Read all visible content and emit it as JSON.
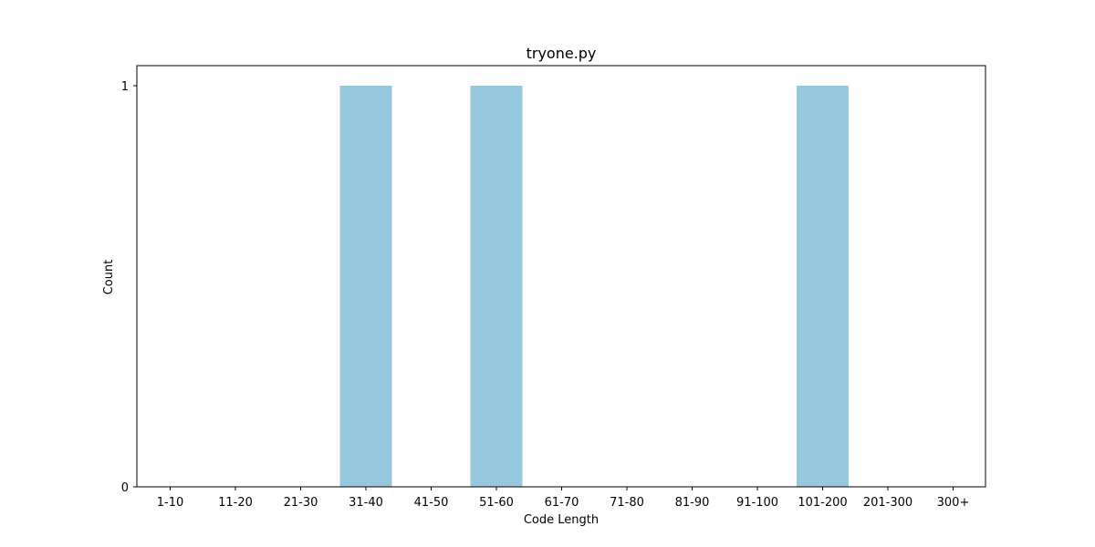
{
  "chart_data": {
    "type": "bar",
    "title": "tryone.py",
    "xlabel": "Code Length",
    "ylabel": "Count",
    "categories": [
      "1-10",
      "11-20",
      "21-30",
      "31-40",
      "41-50",
      "51-60",
      "61-70",
      "71-80",
      "81-90",
      "91-100",
      "101-200",
      "201-300",
      "300+"
    ],
    "values": [
      0,
      0,
      0,
      1,
      0,
      1,
      0,
      0,
      0,
      0,
      1,
      0,
      0
    ],
    "ylim": [
      0,
      1
    ],
    "yticks": [
      0,
      1
    ],
    "bar_color": "#96c9de",
    "grid": false,
    "legend": "none"
  }
}
